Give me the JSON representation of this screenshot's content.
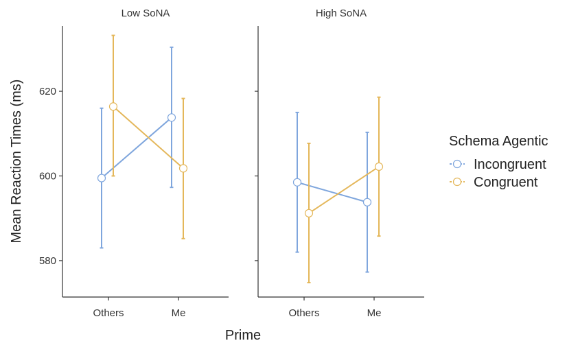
{
  "chart_data": {
    "type": "line",
    "facet_var": "SoNA",
    "panels": [
      {
        "strip": "Low SoNA",
        "categories": [
          "Others",
          "Me"
        ],
        "series": [
          {
            "name": "Incongruent",
            "values": [
              599.5,
              613.8
            ],
            "lower": [
              583.0,
              597.3
            ],
            "upper": [
              616.0,
              630.4
            ]
          },
          {
            "name": "Congruent",
            "values": [
              616.4,
              601.8
            ],
            "lower": [
              600.0,
              585.2
            ],
            "upper": [
              633.2,
              618.3
            ]
          }
        ]
      },
      {
        "strip": "High SoNA",
        "categories": [
          "Others",
          "Me"
        ],
        "series": [
          {
            "name": "Incongruent",
            "values": [
              598.5,
              593.8
            ],
            "lower": [
              582.0,
              577.3
            ],
            "upper": [
              615.0,
              610.3
            ]
          },
          {
            "name": "Congruent",
            "values": [
              591.2,
              602.2
            ],
            "lower": [
              574.8,
              585.8
            ],
            "upper": [
              607.7,
              618.6
            ]
          }
        ]
      }
    ],
    "xlabel": "Prime",
    "ylabel": "Mean Reaction Times (ms)",
    "ylim": [
      571.4,
      635.4
    ],
    "yticks": [
      580,
      600,
      620
    ],
    "legend": {
      "title": "Schema Agentic",
      "position": "right",
      "entries": [
        "Incongruent",
        "Congruent"
      ]
    },
    "colors": {
      "Incongruent": "#7fa6dd",
      "Congruent": "#e4b75a"
    },
    "grid": false
  }
}
